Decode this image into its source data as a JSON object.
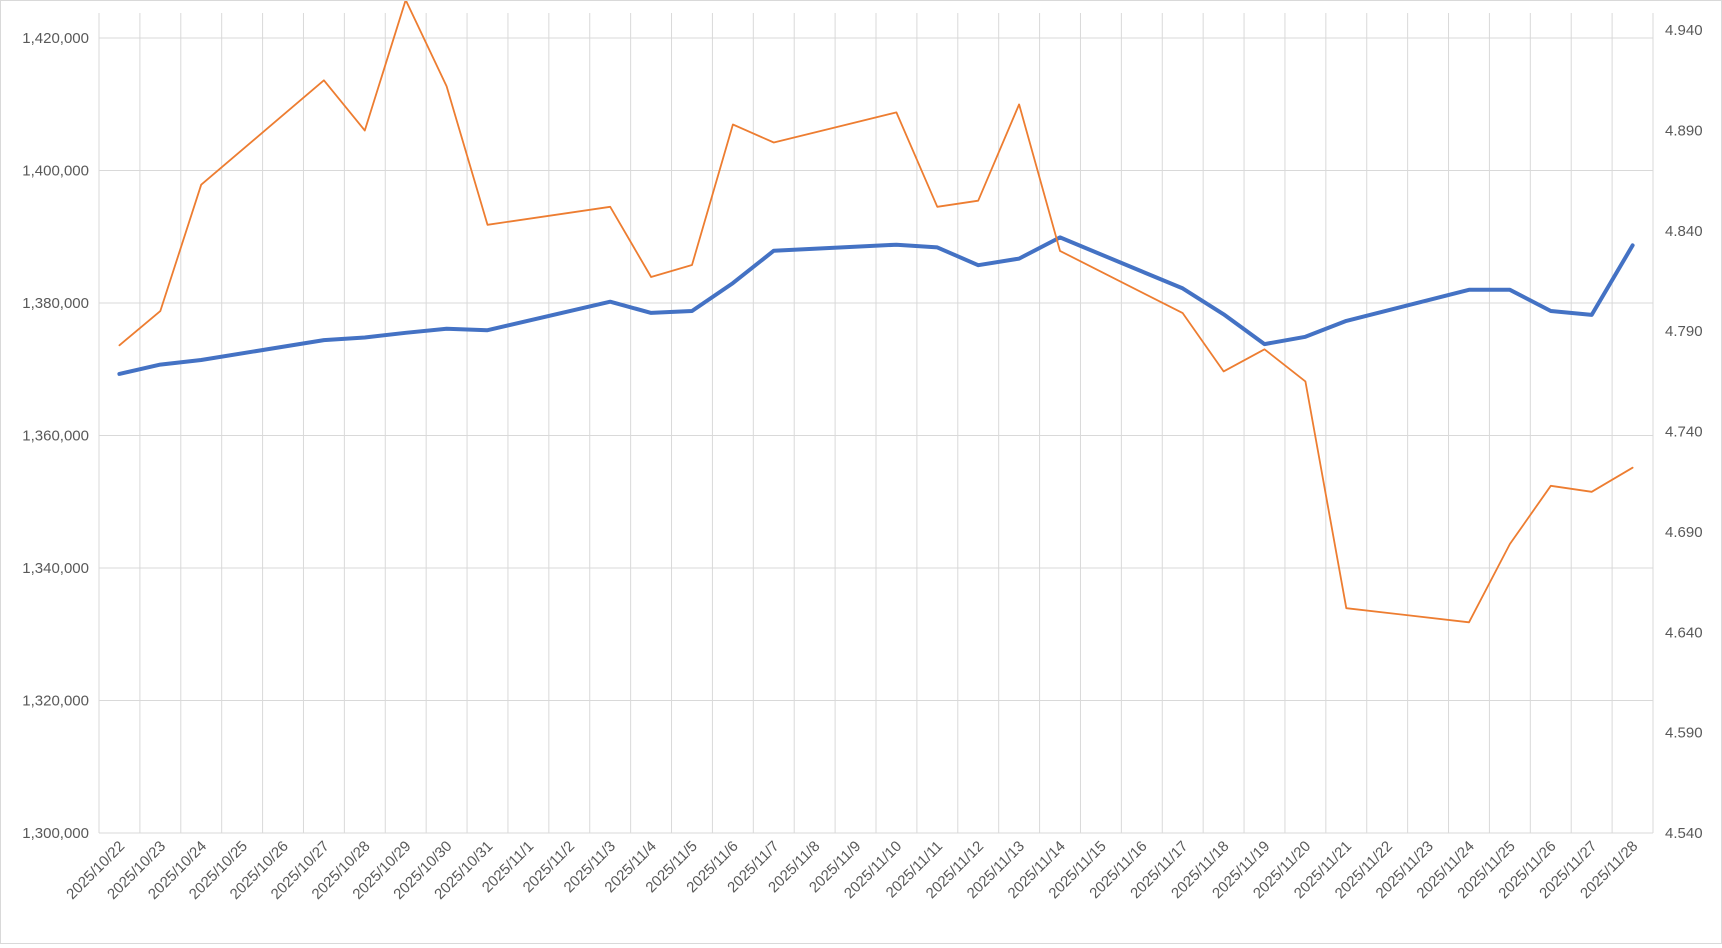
{
  "chart_data": {
    "type": "line",
    "categories": [
      "2025/10/22",
      "2025/10/23",
      "2025/10/24",
      "2025/10/25",
      "2025/10/26",
      "2025/10/27",
      "2025/10/28",
      "2025/10/29",
      "2025/10/30",
      "2025/10/31",
      "2025/11/1",
      "2025/11/2",
      "2025/11/3",
      "2025/11/4",
      "2025/11/5",
      "2025/11/6",
      "2025/11/7",
      "2025/11/8",
      "2025/11/9",
      "2025/11/10",
      "2025/11/11",
      "2025/11/12",
      "2025/11/13",
      "2025/11/14",
      "2025/11/15",
      "2025/11/16",
      "2025/11/17",
      "2025/11/18",
      "2025/11/19",
      "2025/11/20",
      "2025/11/21",
      "2025/11/22",
      "2025/11/23",
      "2025/11/24",
      "2025/11/25",
      "2025/11/26",
      "2025/11/27",
      "2025/11/28"
    ],
    "series": [
      {
        "axis": "left",
        "color": "#4472c4",
        "points": [
          [
            "2025/10/22",
            1369300
          ],
          [
            "2025/10/23",
            1370700
          ],
          [
            "2025/10/24",
            1371400
          ],
          [
            "2025/10/27",
            1374400
          ],
          [
            "2025/10/28",
            1374800
          ],
          [
            "2025/10/29",
            1375500
          ],
          [
            "2025/10/30",
            1376100
          ],
          [
            "2025/10/31",
            1375900
          ],
          [
            "2025/11/3",
            1380200
          ],
          [
            "2025/11/4",
            1378500
          ],
          [
            "2025/11/5",
            1378800
          ],
          [
            "2025/11/6",
            1383000
          ],
          [
            "2025/11/7",
            1387900
          ],
          [
            "2025/11/10",
            1388800
          ],
          [
            "2025/11/11",
            1388400
          ],
          [
            "2025/11/12",
            1385700
          ],
          [
            "2025/11/13",
            1386700
          ],
          [
            "2025/11/14",
            1389900
          ],
          [
            "2025/11/17",
            1382200
          ],
          [
            "2025/11/18",
            1378300
          ],
          [
            "2025/11/19",
            1373800
          ],
          [
            "2025/11/20",
            1374900
          ],
          [
            "2025/11/21",
            1377300
          ],
          [
            "2025/11/24",
            1382000
          ],
          [
            "2025/11/25",
            1382000
          ],
          [
            "2025/11/26",
            1378800
          ],
          [
            "2025/11/27",
            1378200
          ],
          [
            "2025/11/28",
            1388700
          ]
        ]
      },
      {
        "axis": "right",
        "color": "#ed7d31",
        "points": [
          [
            "2025/10/22",
            4.783
          ],
          [
            "2025/10/23",
            4.8
          ],
          [
            "2025/10/24",
            4.863
          ],
          [
            "2025/10/27",
            4.915
          ],
          [
            "2025/10/28",
            4.89
          ],
          [
            "2025/10/29",
            4.955
          ],
          [
            "2025/10/30",
            4.912
          ],
          [
            "2025/10/31",
            4.843
          ],
          [
            "2025/11/3",
            4.852
          ],
          [
            "2025/11/4",
            4.817
          ],
          [
            "2025/11/5",
            4.823
          ],
          [
            "2025/11/6",
            4.893
          ],
          [
            "2025/11/7",
            4.884
          ],
          [
            "2025/11/10",
            4.899
          ],
          [
            "2025/11/11",
            4.852
          ],
          [
            "2025/11/12",
            4.855
          ],
          [
            "2025/11/13",
            4.903
          ],
          [
            "2025/11/14",
            4.83
          ],
          [
            "2025/11/17",
            4.799
          ],
          [
            "2025/11/18",
            4.77
          ],
          [
            "2025/11/19",
            4.781
          ],
          [
            "2025/11/20",
            4.765
          ],
          [
            "2025/11/21",
            4.652
          ],
          [
            "2025/11/24",
            4.645
          ],
          [
            "2025/11/25",
            4.684
          ],
          [
            "2025/11/26",
            4.713
          ],
          [
            "2025/11/27",
            4.71
          ],
          [
            "2025/11/28",
            4.722
          ]
        ]
      }
    ],
    "y_left": {
      "min": 1300000,
      "max": 1420000,
      "ticks": [
        "1,300,000",
        "1,320,000",
        "1,340,000",
        "1,360,000",
        "1,380,000",
        "1,400,000",
        "1,420,000"
      ],
      "tick_values": [
        1300000,
        1320000,
        1340000,
        1360000,
        1380000,
        1400000,
        1420000
      ]
    },
    "y_right": {
      "min": 4.54,
      "max": 4.96,
      "ticks": [
        "4.540",
        "4.590",
        "4.640",
        "4.690",
        "4.740",
        "4.790",
        "4.840",
        "4.890",
        "4.940"
      ],
      "tick_values": [
        4.54,
        4.59,
        4.64,
        4.69,
        4.74,
        4.79,
        4.84,
        4.89,
        4.94
      ]
    },
    "grid": "on",
    "legend": "none"
  }
}
